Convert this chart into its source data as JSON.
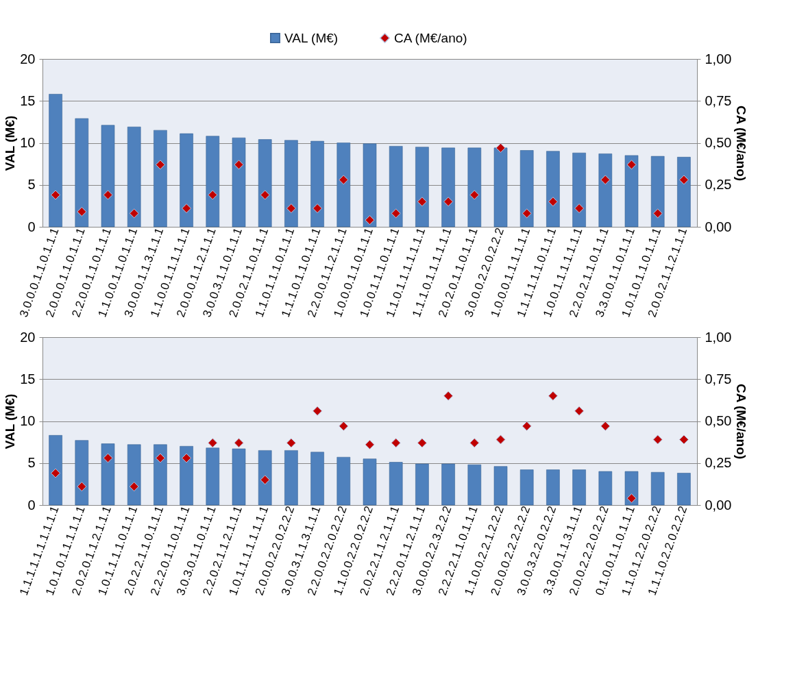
{
  "chart_data": [
    {
      "type": "bar",
      "legend": "top",
      "grid": "y",
      "marker": "diamond",
      "ylabel": "VAL (M€)",
      "y2label": "CA (M€/ano)",
      "ylim": [
        0,
        20
      ],
      "yticks": [
        0,
        5,
        10,
        15,
        20
      ],
      "y2lim": [
        0,
        1
      ],
      "y2ticks": [
        {
          "value": 0,
          "label": "0,00"
        },
        {
          "value": 0.25,
          "label": "0,25"
        },
        {
          "value": 0.5,
          "label": "0,50"
        },
        {
          "value": 0.75,
          "label": "0,75"
        },
        {
          "value": 1,
          "label": "1,00"
        }
      ],
      "categories": [
        "3.0.0.0.1.1.0.1.1.1",
        "2.0.0.0.1.1.0.1.1.1",
        "2.2.0.0.1.1.0.1.1.1",
        "1.1.0.0.1.1.0.1.1.1",
        "3.0.0.0.1.1.3.1.1.1",
        "1.1.0.0.1.1.1.1.1.1",
        "2.0.0.0.1.1.2.1.1.1",
        "3.0.0.3.1.1.0.1.1.1",
        "2.0.0.2.1.1.0.1.1.1",
        "1.1.0.1.1.1.0.1.1.1",
        "1.1.1.0.1.1.0.1.1.1",
        "2.2.0.0.1.1.2.1.1.1",
        "1.0.0.0.1.1.0.1.1.1",
        "1.0.0.1.1.1.0.1.1.1",
        "1.1.0.1.1.1.1.1.1.1",
        "1.1.1.0.1.1.1.1.1.1",
        "2.0.2.0.1.1.0.1.1.1",
        "3.0.0.0.2.2.0.2.2.2",
        "1.0.0.0.1.1.1.1.1.1",
        "1.1.1.1.1.1.0.1.1.1",
        "1.0.0.1.1.1.1.1.1.1",
        "2.2.0.2.1.1.0.1.1.1",
        "3.3.0.0.1.1.0.1.1.1",
        "1.0.1.0.1.1.0.1.1.1",
        "2.0.0.2.1.1.2.1.1.1"
      ],
      "series": [
        {
          "name": "VAL (M€)",
          "color": "#4f81bd",
          "values": [
            15.8,
            12.9,
            12.1,
            11.9,
            11.5,
            11.1,
            10.8,
            10.6,
            10.4,
            10.3,
            10.2,
            10.0,
            9.9,
            9.6,
            9.5,
            9.4,
            9.4,
            9.4,
            9.1,
            9.0,
            8.8,
            8.7,
            8.5,
            8.4,
            8.3
          ]
        },
        {
          "name": "CA (M€/ano)",
          "type": "scatter",
          "axis": "y2",
          "color": "#c00000",
          "values": [
            0.19,
            0.09,
            0.19,
            0.08,
            0.37,
            0.11,
            0.19,
            0.37,
            0.19,
            0.11,
            0.11,
            0.28,
            0.04,
            0.08,
            0.15,
            0.15,
            0.19,
            0.47,
            0.08,
            0.15,
            0.11,
            0.28,
            0.37,
            0.08,
            0.28
          ]
        }
      ]
    },
    {
      "type": "bar",
      "grid": "y",
      "marker": "diamond",
      "ylabel": "VAL (M€)",
      "y2label": "CA (M€/ano)",
      "ylim": [
        0,
        20
      ],
      "yticks": [
        0,
        5,
        10,
        15,
        20
      ],
      "y2lim": [
        0,
        1
      ],
      "y2ticks": [
        {
          "value": 0,
          "label": "0,00"
        },
        {
          "value": 0.25,
          "label": "0,25"
        },
        {
          "value": 0.5,
          "label": "0,50"
        },
        {
          "value": 0.75,
          "label": "0,75"
        },
        {
          "value": 1,
          "label": "1,00"
        }
      ],
      "categories": [
        "1.1.1.1.1.1.1.1.1.1",
        "1.0.1.0.1.1.1.1.1.1",
        "2.0.2.0.1.1.2.1.1.1",
        "1.0.1.1.1.1.0.1.1.1",
        "2.0.2.2.1.1.0.1.1.1",
        "2.2.2.0.1.1.0.1.1.1",
        "3.0.3.0.1.1.0.1.1.1",
        "2.2.0.2.1.1.2.1.1.1",
        "1.0.1.1.1.1.1.1.1.1",
        "2.0.0.0.2.2.0.2.2.2",
        "3.0.0.3.1.1.3.1.1.1",
        "2.2.0.0.2.2.0.2.2.2",
        "1.1.0.0.2.2.0.2.2.2",
        "2.0.2.2.1.1.2.1.1.1",
        "2.2.2.0.1.1.2.1.1.1",
        "3.0.0.0.2.2.3.2.2.2",
        "2.2.2.2.1.1.0.1.1.1",
        "1.1.0.0.2.2.1.2.2.2",
        "2.0.0.0.2.2.2.2.2.2",
        "3.0.0.3.2.2.0.2.2.2",
        "3.3.0.0.1.1.3.1.1.1",
        "2.0.0.2.2.2.0.2.2.2",
        "0.1.0.0.1.1.0.1.1.1",
        "1.1.0.1.2.2.0.2.2.2",
        "1.1.1.0.2.2.0.2.2.2"
      ],
      "series": [
        {
          "color": "#4f81bd",
          "values": [
            8.3,
            7.7,
            7.3,
            7.2,
            7.2,
            7.0,
            6.8,
            6.7,
            6.5,
            6.5,
            6.3,
            5.7,
            5.5,
            5.1,
            4.9,
            4.9,
            4.8,
            4.6,
            4.2,
            4.2,
            4.2,
            4.0,
            4.0,
            3.9,
            3.8
          ]
        },
        {
          "type": "scatter",
          "axis": "y2",
          "color": "#c00000",
          "values": [
            0.19,
            0.11,
            0.28,
            0.11,
            0.28,
            0.28,
            0.37,
            0.37,
            0.15,
            0.37,
            0.56,
            0.47,
            0.36,
            0.37,
            0.37,
            0.65,
            0.37,
            0.39,
            0.47,
            0.65,
            0.56,
            0.47,
            0.04,
            0.39,
            0.39
          ]
        }
      ]
    }
  ]
}
